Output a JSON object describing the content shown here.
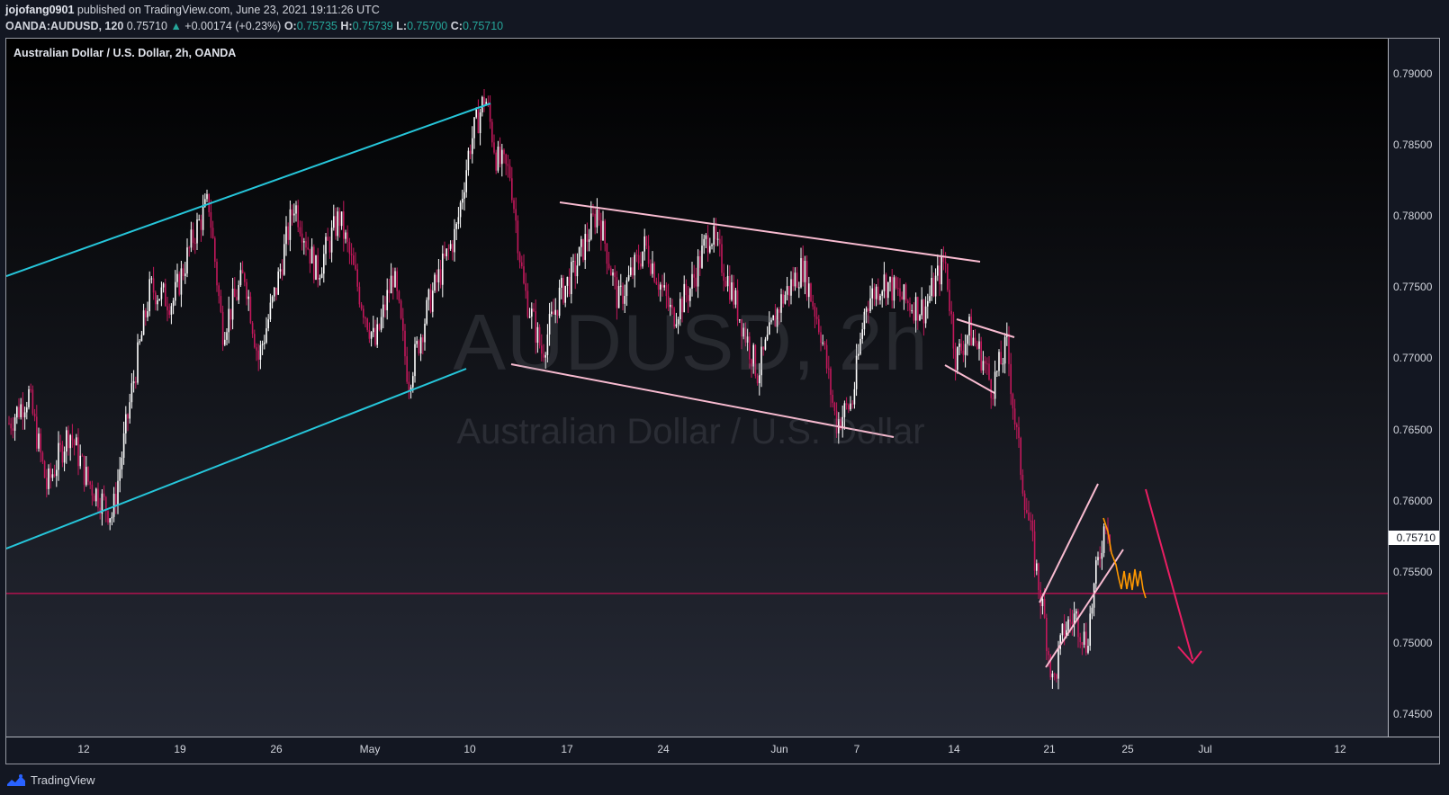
{
  "header": {
    "author": "jojofang0901",
    "published_text": "published on TradingView.com, June 23, 2021 19:11:26 UTC",
    "symbol": "OANDA:AUDUSD, 120",
    "last": "0.75710",
    "change_arrow": "▲",
    "change": "+0.00174 (+0.23%)",
    "o_label": "O:",
    "o": "0.75735",
    "h_label": "H:",
    "h": "0.75739",
    "l_label": "L:",
    "l": "0.75700",
    "c_label": "C:",
    "c": "0.75710"
  },
  "chart": {
    "title": "Australian Dollar / U.S. Dollar, 2h, OANDA",
    "watermark_symbol": "AUDUSD, 2h",
    "watermark_name": "Australian Dollar / U.S. Dollar",
    "current_price_label": "0.75710",
    "y_ticks": [
      "0.79000",
      "0.78500",
      "0.78000",
      "0.77500",
      "0.77000",
      "0.76500",
      "0.76000",
      "0.75500",
      "0.75000",
      "0.74500"
    ],
    "x_ticks": [
      "12",
      "19",
      "26",
      "May",
      "10",
      "17",
      "24",
      "Jun",
      "7",
      "14",
      "21",
      "25",
      "Jul",
      "12"
    ]
  },
  "chart_data": {
    "type": "candlestick",
    "symbol": "AUDUSD",
    "timeframe": "2h",
    "y_range": [
      0.7435,
      0.7925
    ],
    "key_levels": [
      {
        "price": 0.75355
      }
    ],
    "turning_points": [
      {
        "date": "Apr 6",
        "price": 0.766
      },
      {
        "date": "Apr 21",
        "price": 0.7815
      },
      {
        "date": "Apr 23",
        "price": 0.77
      },
      {
        "date": "Apr 28",
        "price": 0.781
      },
      {
        "date": "May 4",
        "price": 0.7675
      },
      {
        "date": "May 10",
        "price": 0.789
      },
      {
        "date": "May 13",
        "price": 0.77
      },
      {
        "date": "May 18",
        "price": 0.781
      },
      {
        "date": "May 26",
        "price": 0.7795
      },
      {
        "date": "Jun 4",
        "price": 0.765
      },
      {
        "date": "Jun 11",
        "price": 0.7775
      },
      {
        "date": "Jun 17",
        "price": 0.7675
      },
      {
        "date": "Jun 18",
        "price": 0.771
      },
      {
        "date": "Jun 21",
        "price": 0.7465
      },
      {
        "date": "Jun 23",
        "price": 0.76
      },
      {
        "date": "Jun 23",
        "price": 0.7571
      }
    ]
  },
  "footer": {
    "brand": "TradingView"
  },
  "colors": {
    "background": "#131722",
    "up_candle": "#ffffff",
    "down_candle": "#c2185b",
    "channel_cyan": "#26c6da",
    "channel_pink": "#f8bbd0",
    "horizontal_level": "#b0124f",
    "projection_orange": "#ff9800",
    "arrow": "#e91e63"
  }
}
